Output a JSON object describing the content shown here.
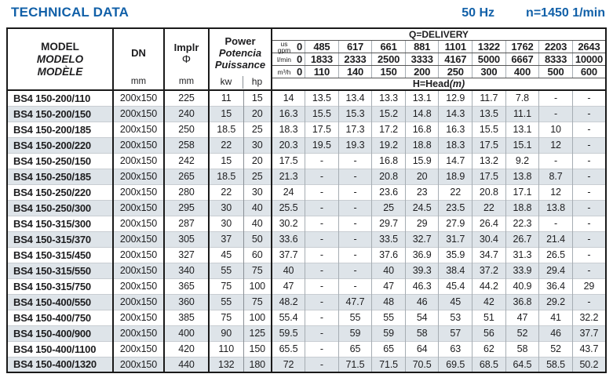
{
  "header": {
    "title": "TECHNICAL DATA",
    "frequency": "50 Hz",
    "speed": "n=1450 1/min"
  },
  "table": {
    "model_header": {
      "line1": "MODEL",
      "line2": "MODELO",
      "line3": "MODÈLE"
    },
    "dn_header": {
      "label": "DN",
      "unit": "mm"
    },
    "impeller_header": {
      "label": "Implr",
      "symbol": "Φ",
      "unit": "mm"
    },
    "power_header": {
      "line1": "Power",
      "line2": "Potencia",
      "line3": "Puissance",
      "unit_kw": "kw",
      "unit_hp": "hp"
    },
    "delivery": {
      "title": "Q=DELIVERY",
      "head_label": "H=Head",
      "head_unit": "(m)",
      "rows": [
        {
          "unit_top": "us",
          "unit": "gpm",
          "zero": "0",
          "values": [
            "485",
            "617",
            "661",
            "881",
            "1101",
            "1322",
            "1762",
            "2203",
            "2643"
          ]
        },
        {
          "unit": "l/min",
          "zero": "0",
          "values": [
            "1833",
            "2333",
            "2500",
            "3333",
            "4167",
            "5000",
            "6667",
            "8333",
            "10000"
          ]
        },
        {
          "unit": "m³/h",
          "zero": "0",
          "values": [
            "110",
            "140",
            "150",
            "200",
            "250",
            "300",
            "400",
            "500",
            "600"
          ]
        }
      ]
    },
    "rows": [
      {
        "model": "BS4 150-200/110",
        "dn": "200x150",
        "impeller": "225",
        "kw": "11",
        "hp": "15",
        "head": [
          "14",
          "13.5",
          "13.4",
          "13.3",
          "13.1",
          "12.9",
          "11.7",
          "7.8",
          "-",
          "-"
        ]
      },
      {
        "model": "BS4 150-200/150",
        "dn": "200x150",
        "impeller": "240",
        "kw": "15",
        "hp": "20",
        "head": [
          "16.3",
          "15.5",
          "15.3",
          "15.2",
          "14.8",
          "14.3",
          "13.5",
          "11.1",
          "-",
          "-"
        ]
      },
      {
        "model": "BS4 150-200/185",
        "dn": "200x150",
        "impeller": "250",
        "kw": "18.5",
        "hp": "25",
        "head": [
          "18.3",
          "17.5",
          "17.3",
          "17.2",
          "16.8",
          "16.3",
          "15.5",
          "13.1",
          "10",
          "-"
        ]
      },
      {
        "model": "BS4 150-200/220",
        "dn": "200x150",
        "impeller": "258",
        "kw": "22",
        "hp": "30",
        "head": [
          "20.3",
          "19.5",
          "19.3",
          "19.2",
          "18.8",
          "18.3",
          "17.5",
          "15.1",
          "12",
          "-"
        ]
      },
      {
        "model": "BS4 150-250/150",
        "dn": "200x150",
        "impeller": "242",
        "kw": "15",
        "hp": "20",
        "head": [
          "17.5",
          "-",
          "-",
          "16.8",
          "15.9",
          "14.7",
          "13.2",
          "9.2",
          "-",
          "-"
        ]
      },
      {
        "model": "BS4 150-250/185",
        "dn": "200x150",
        "impeller": "265",
        "kw": "18.5",
        "hp": "25",
        "head": [
          "21.3",
          "-",
          "-",
          "20.8",
          "20",
          "18.9",
          "17.5",
          "13.8",
          "8.7",
          "-"
        ]
      },
      {
        "model": "BS4 150-250/220",
        "dn": "200x150",
        "impeller": "280",
        "kw": "22",
        "hp": "30",
        "head": [
          "24",
          "-",
          "-",
          "23.6",
          "23",
          "22",
          "20.8",
          "17.1",
          "12",
          "-"
        ]
      },
      {
        "model": "BS4 150-250/300",
        "dn": "200x150",
        "impeller": "295",
        "kw": "30",
        "hp": "40",
        "head": [
          "25.5",
          "-",
          "-",
          "25",
          "24.5",
          "23.5",
          "22",
          "18.8",
          "13.8",
          "-"
        ]
      },
      {
        "model": "BS4 150-315/300",
        "dn": "200x150",
        "impeller": "287",
        "kw": "30",
        "hp": "40",
        "head": [
          "30.2",
          "-",
          "-",
          "29.7",
          "29",
          "27.9",
          "26.4",
          "22.3",
          "-",
          "-"
        ]
      },
      {
        "model": "BS4 150-315/370",
        "dn": "200x150",
        "impeller": "305",
        "kw": "37",
        "hp": "50",
        "head": [
          "33.6",
          "-",
          "-",
          "33.5",
          "32.7",
          "31.7",
          "30.4",
          "26.7",
          "21.4",
          "-"
        ]
      },
      {
        "model": "BS4 150-315/450",
        "dn": "200x150",
        "impeller": "327",
        "kw": "45",
        "hp": "60",
        "head": [
          "37.7",
          "-",
          "-",
          "37.6",
          "36.9",
          "35.9",
          "34.7",
          "31.3",
          "26.5",
          "-"
        ]
      },
      {
        "model": "BS4 150-315/550",
        "dn": "200x150",
        "impeller": "340",
        "kw": "55",
        "hp": "75",
        "head": [
          "40",
          "-",
          "-",
          "40",
          "39.3",
          "38.4",
          "37.2",
          "33.9",
          "29.4",
          "-"
        ]
      },
      {
        "model": "BS4 150-315/750",
        "dn": "200x150",
        "impeller": "365",
        "kw": "75",
        "hp": "100",
        "head": [
          "47",
          "-",
          "-",
          "47",
          "46.3",
          "45.4",
          "44.2",
          "40.9",
          "36.4",
          "29"
        ]
      },
      {
        "model": "BS4 150-400/550",
        "dn": "200x150",
        "impeller": "360",
        "kw": "55",
        "hp": "75",
        "head": [
          "48.2",
          "-",
          "47.7",
          "48",
          "46",
          "45",
          "42",
          "36.8",
          "29.2",
          "-"
        ]
      },
      {
        "model": "BS4 150-400/750",
        "dn": "200x150",
        "impeller": "385",
        "kw": "75",
        "hp": "100",
        "head": [
          "55.4",
          "-",
          "55",
          "55",
          "54",
          "53",
          "51",
          "47",
          "41",
          "32.2"
        ]
      },
      {
        "model": "BS4 150-400/900",
        "dn": "200x150",
        "impeller": "400",
        "kw": "90",
        "hp": "125",
        "head": [
          "59.5",
          "-",
          "59",
          "59",
          "58",
          "57",
          "56",
          "52",
          "46",
          "37.7"
        ]
      },
      {
        "model": "BS4 150-400/1100",
        "dn": "200x150",
        "impeller": "420",
        "kw": "110",
        "hp": "150",
        "head": [
          "65.5",
          "-",
          "65",
          "65",
          "64",
          "63",
          "62",
          "58",
          "52",
          "43.7"
        ]
      },
      {
        "model": "BS4 150-400/1320",
        "dn": "200x150",
        "impeller": "440",
        "kw": "132",
        "hp": "180",
        "head": [
          "72",
          "-",
          "71.5",
          "71.5",
          "70.5",
          "69.5",
          "68.5",
          "64.5",
          "58.5",
          "50.2"
        ]
      }
    ]
  }
}
